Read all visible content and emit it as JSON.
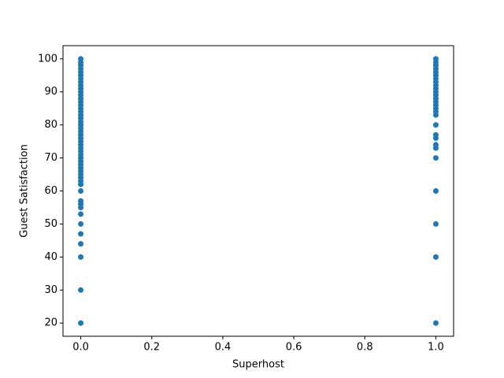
{
  "chart_data": {
    "type": "scatter",
    "xlabel": "Superhost",
    "ylabel": "Guest Satisfaction",
    "series": [
      {
        "color": "#1f77b4",
        "x": [
          0,
          0,
          0,
          0,
          0,
          0,
          0,
          0,
          0,
          0,
          0,
          0,
          0,
          0,
          0,
          0,
          0,
          0,
          0,
          0,
          0,
          0,
          0,
          0,
          0,
          0,
          0,
          0,
          0,
          0,
          0,
          0,
          0,
          0,
          0,
          0,
          0,
          0,
          0,
          0,
          0,
          0,
          0,
          0,
          0,
          0,
          0,
          0,
          0,
          0,
          1,
          1,
          1,
          1,
          1,
          1,
          1,
          1,
          1,
          1,
          1,
          1,
          1,
          1,
          1,
          1,
          1,
          1,
          1,
          1,
          1,
          1,
          1,
          1,
          1,
          1,
          1,
          1
        ],
        "values": [
          20,
          30,
          40,
          44,
          47,
          50,
          53,
          55,
          56,
          57,
          60,
          62,
          63,
          64,
          65,
          66,
          67,
          68,
          69,
          70,
          71,
          72,
          73,
          74,
          75,
          76,
          77,
          78,
          79,
          80,
          81,
          82,
          83,
          84,
          85,
          86,
          87,
          88,
          89,
          90,
          91,
          92,
          93,
          94,
          95,
          96,
          97,
          98,
          99,
          100,
          20,
          40,
          50,
          60,
          70,
          73,
          74,
          76,
          77,
          80,
          83,
          84,
          85,
          86,
          87,
          88,
          89,
          90,
          91,
          92,
          93,
          94,
          95,
          96,
          97,
          98,
          99,
          100
        ]
      }
    ],
    "xlim": [
      -0.05,
      1.05
    ],
    "xticks": [
      {
        "value": 0,
        "label": "0.0"
      },
      0.2,
      0.4,
      0.6,
      0.8,
      {
        "value": 1,
        "label": "1.0"
      }
    ],
    "ylim": [
      16,
      104
    ],
    "yticks": [
      20,
      30,
      40,
      50,
      60,
      70,
      80,
      90,
      100
    ],
    "grid": false
  }
}
